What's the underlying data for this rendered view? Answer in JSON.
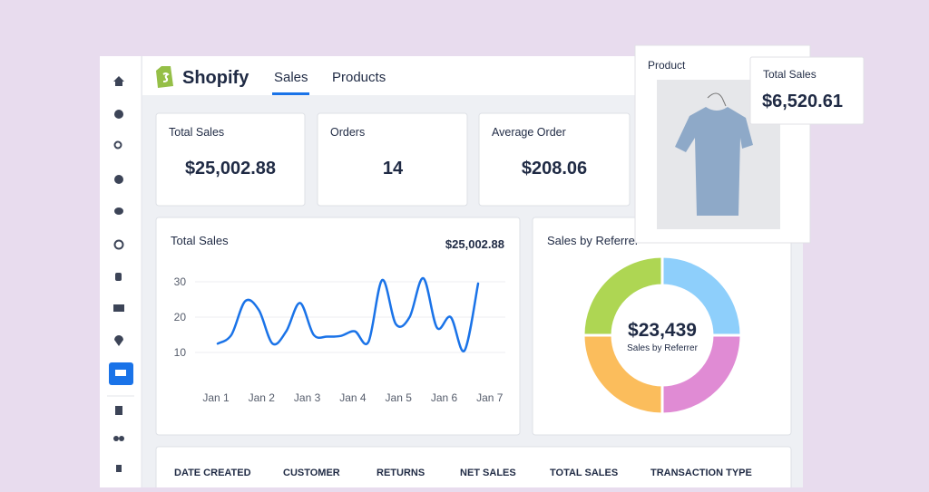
{
  "header": {
    "brand": "Shopify",
    "tabs": [
      "Sales",
      "Products"
    ]
  },
  "kpis": [
    {
      "label": "Total Sales",
      "value": "$25,002.88"
    },
    {
      "label": "Orders",
      "value": "14"
    },
    {
      "label": "Average Order",
      "value": "$208.06"
    }
  ],
  "line_chart": {
    "type": "line",
    "title": "Total Sales",
    "total": "$25,002.88",
    "color": "#1a73e8",
    "categories": [
      "Jan 1",
      "Jan 2",
      "Jan 3",
      "Jan 4",
      "Jan 5",
      "Jan 6",
      "Jan 7"
    ],
    "values": [
      12.5,
      15,
      24.5,
      22,
      12.5,
      16,
      24,
      15,
      14.5,
      14.7,
      16,
      13,
      30.5,
      18,
      20,
      31,
      17,
      20,
      10.5,
      29.5
    ],
    "ylim": [
      5,
      35
    ],
    "yticks": [
      10,
      20,
      30
    ],
    "grid": true
  },
  "donut_chart": {
    "type": "pie",
    "title": "Sales by Referrer",
    "center_value": "$23,439",
    "center_label": "Sales by Referrer",
    "values": [
      25,
      25,
      25,
      25
    ],
    "colors": [
      "#8ecffb",
      "#e08bd4",
      "#fbbd5c",
      "#aed653"
    ]
  },
  "product_popup": {
    "title": "Product"
  },
  "sales_popup": {
    "label": "Total Sales",
    "value": "$6,520.61"
  },
  "table": {
    "headers": [
      "DATE CREATED",
      "CUSTOMER",
      "RETURNS",
      "NET SALES",
      "TOTAL SALES",
      "TRANSACTION TYPE"
    ]
  }
}
